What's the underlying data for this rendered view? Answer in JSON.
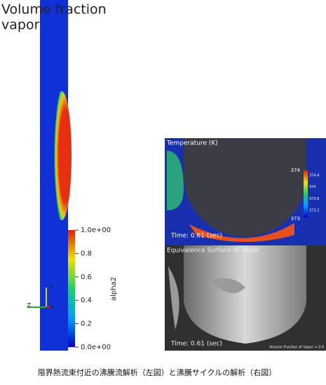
{
  "left_panel": {
    "title_lines": [
      "Volume fraction",
      "vapor"
    ],
    "colorbar": {
      "labels": [
        "1.0e+00",
        "0.8",
        "0.6",
        "0.4",
        "0.2",
        "0.0e+00"
      ],
      "title": "alpha2"
    },
    "axes": {
      "y": "Y",
      "z": "Z",
      "x": "X"
    }
  },
  "right_top": {
    "title": "Temperature (K)",
    "scale_max": "374",
    "scale_min": "373",
    "colorbar_labels": [
      "374.4",
      "374",
      "373.6",
      "373.2"
    ],
    "time": "Time: 0.61 (sec)"
  },
  "right_bottom": {
    "title": "Equivalence Surface of Vapor",
    "time": "Time: 0.61 (sec)",
    "note": "Volume Fraction of Vapor = 0.9"
  },
  "caption": "限界熱流束付近の沸騰流解析（左図）と沸騰サイクルの解析（右図）"
}
